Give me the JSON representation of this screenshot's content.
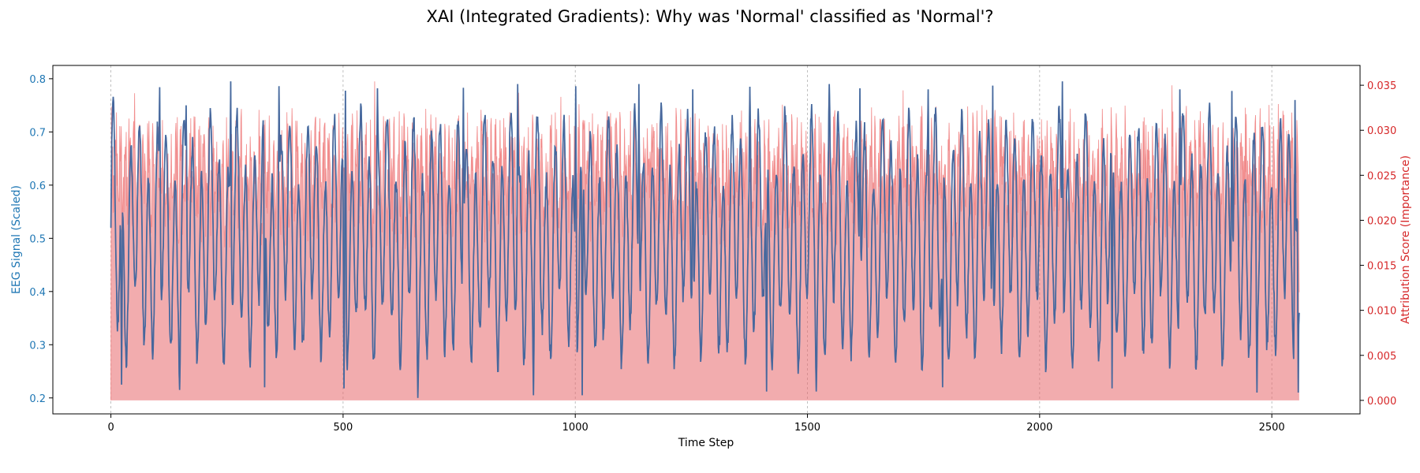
{
  "chart_data": {
    "type": "line",
    "title": "XAI (Integrated Gradients): Why was 'Normal' classified as 'Normal'?",
    "xlabel": "Time Step",
    "ylabel_left": "EEG Signal (Scaled)",
    "ylabel_right": "Attribution Score (Importance)",
    "xlim": [
      -125,
      2690
    ],
    "ylim_left": [
      0.17,
      0.825
    ],
    "ylim_right": [
      -0.0015,
      0.0372
    ],
    "x_ticks": [
      0,
      500,
      1000,
      1500,
      2000,
      2500
    ],
    "y_ticks_left": [
      0.2,
      0.3,
      0.4,
      0.5,
      0.6,
      0.7,
      0.8
    ],
    "y_ticks_right": [
      0.0,
      0.005,
      0.01,
      0.015,
      0.02,
      0.025,
      0.03,
      0.035
    ],
    "x_tick_labels": [
      "0",
      "500",
      "1000",
      "1500",
      "2000",
      "2500"
    ],
    "y_tick_labels_left": [
      "0.2",
      "0.3",
      "0.4",
      "0.5",
      "0.6",
      "0.7",
      "0.8"
    ],
    "y_tick_labels_right": [
      "0.000",
      "0.005",
      "0.010",
      "0.015",
      "0.020",
      "0.025",
      "0.030",
      "0.035"
    ],
    "grid": "vertical dashed at x ticks",
    "n_points": 2560,
    "series": [
      {
        "axis": "left",
        "color": "#1f77b4",
        "style": "line",
        "summary": {
          "min": 0.2,
          "max": 0.795,
          "start": 0.52,
          "end": 0.36
        },
        "peaks_x": [
          5,
          105,
          162,
          258,
          362,
          505,
          574,
          759,
          876,
          1001,
          1137,
          1253,
          1376,
          1547,
          1613,
          1760,
          1899,
          2049,
          2155,
          2302,
          2414,
          2550
        ],
        "peaks_y": [
          0.766,
          0.784,
          0.75,
          0.795,
          0.786,
          0.787,
          0.782,
          0.783,
          0.79,
          0.786,
          0.79,
          0.78,
          0.785,
          0.79,
          0.782,
          0.78,
          0.787,
          0.796,
          0.772,
          0.78,
          0.777,
          0.76
        ],
        "troughs_x": [
          23,
          148,
          331,
          502,
          661,
          910,
          1015,
          1412,
          1519,
          1791,
          2156,
          2468,
          2557
        ],
        "troughs_y": [
          0.225,
          0.215,
          0.22,
          0.218,
          0.2,
          0.205,
          0.205,
          0.212,
          0.212,
          0.22,
          0.218,
          0.21,
          0.21
        ]
      },
      {
        "axis": "right",
        "color": "#e8686b",
        "style": "filled area",
        "summary": {
          "min": 0.0,
          "max": 0.0355,
          "typical_low": 0.022,
          "typical_high": 0.032
        }
      }
    ]
  },
  "colors": {
    "eeg_line": "#1f77b4",
    "eeg_axis": "#1f77b4",
    "attribution_line": "#f08080",
    "attribution_fill": "#e8686b",
    "attribution_axis": "#d62728"
  }
}
